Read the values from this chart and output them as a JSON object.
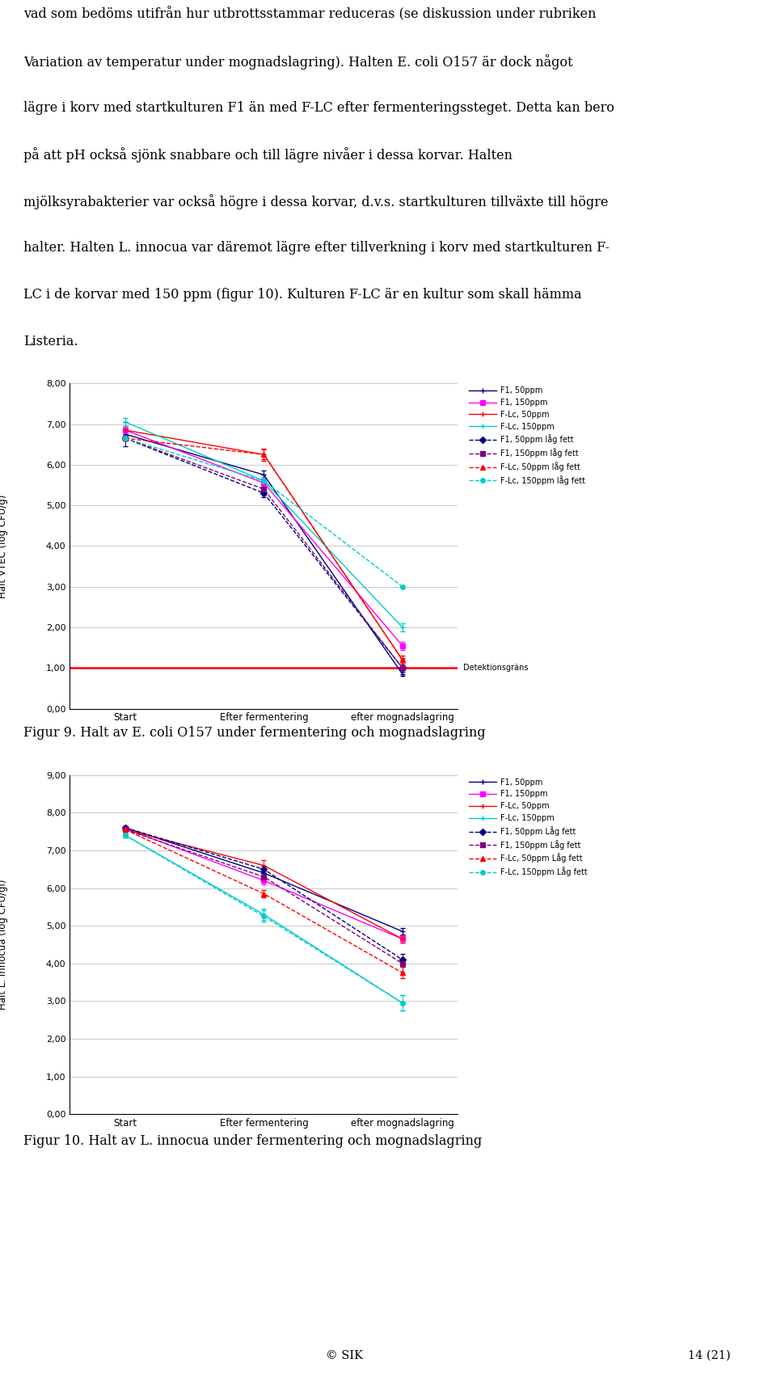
{
  "text_content": {
    "lines": [
      "vad som bedöms utifrån hur utbrottsstammar reduceras (se diskussion under rubriken",
      "Variation av temperatur under mognadslagring). Halten E. coli O157 är dock något",
      "lägre i korv med startkulturen F1 än med F-LC efter fermenteringssteget. Detta kan bero",
      "på att pH också sjönk snabbare och till lägre nivåer i dessa korvar. Halten",
      "mjölksyrabakterier var också högre i dessa korvar, d.v.s. startkulturen tillväxte till högre",
      "halter. Halten L. innocua var däremot lägre efter tillverkning i korv med startkulturen F-",
      "LC i de korvar med 150 ppm (figur 10). Kulturen F-LC är en kultur som skall hämma",
      "Listeria."
    ],
    "fig9_caption": "Figur 9. Halt av E. coli O157 under fermentering och mognadslagring",
    "fig10_caption": "Figur 10. Halt av L. innocua under fermentering och mognadslagring",
    "fig9_ylabel": "Halt VTEC (log CFU/g)",
    "fig10_ylabel": "Halt L. innocua (log CFU/gl)",
    "xlabel_labels": [
      "Start",
      "Efter fermentering",
      "efter mognadslagring"
    ],
    "detection_label": "Detektionsgräns"
  },
  "fig9": {
    "ylim": [
      0.0,
      8.0
    ],
    "yticks": [
      0.0,
      1.0,
      2.0,
      3.0,
      4.0,
      5.0,
      6.0,
      7.0,
      8.0
    ],
    "ytick_labels": [
      "0,00",
      "1,00",
      "2,00",
      "3,00",
      "4,00",
      "5,00",
      "6,00",
      "7,00",
      "8,00"
    ],
    "detection_line": 1.0,
    "series": [
      {
        "label": "F1, 50ppm",
        "color": "#000080",
        "linestyle": "-",
        "marker": "+",
        "values": [
          6.75,
          5.75,
          0.85
        ],
        "yerr": [
          0.3,
          0.1,
          0.05
        ]
      },
      {
        "label": "F1, 150ppm",
        "color": "#FF00FF",
        "linestyle": "-",
        "marker": "s",
        "values": [
          6.85,
          5.55,
          1.55
        ],
        "yerr": [
          0.1,
          0.1,
          0.1
        ]
      },
      {
        "label": "F-Lc, 50ppm",
        "color": "#FF0000",
        "linestyle": "-",
        "marker": "+",
        "values": [
          6.85,
          6.25,
          1.2
        ],
        "yerr": [
          0.1,
          0.15,
          0.1
        ]
      },
      {
        "label": "F-Lc, 150ppm",
        "color": "#00CCCC",
        "linestyle": "-",
        "marker": "+",
        "values": [
          7.05,
          5.6,
          2.0
        ],
        "yerr": [
          0.1,
          0.15,
          0.1
        ]
      },
      {
        "label": "F1, 50ppm låg fett",
        "color": "#000080",
        "linestyle": "--",
        "marker": "D",
        "values": [
          6.65,
          5.3,
          1.0
        ],
        "yerr": [
          0.0,
          0.1,
          0.0
        ]
      },
      {
        "label": "F1, 150ppm låg fett",
        "color": "#800080",
        "linestyle": "--",
        "marker": "s",
        "values": [
          6.65,
          5.4,
          1.0
        ],
        "yerr": [
          0.0,
          0.1,
          0.0
        ]
      },
      {
        "label": "F-Lc, 50ppm låg fett",
        "color": "#FF0000",
        "linestyle": "--",
        "marker": "^",
        "values": [
          6.65,
          6.25,
          1.2
        ],
        "yerr": [
          0.0,
          0.12,
          0.05
        ]
      },
      {
        "label": "F-Lc, 150ppm låg fett",
        "color": "#00CCCC",
        "linestyle": "--",
        "marker": "o",
        "values": [
          6.65,
          5.6,
          3.0
        ],
        "yerr": [
          0.0,
          0.1,
          0.0
        ]
      }
    ]
  },
  "fig10": {
    "ylim": [
      0.0,
      9.0
    ],
    "yticks": [
      0.0,
      1.0,
      2.0,
      3.0,
      4.0,
      5.0,
      6.0,
      7.0,
      8.0,
      9.0
    ],
    "ytick_labels": [
      "0,00",
      "1,00",
      "2,00",
      "3,00",
      "4,00",
      "5,00",
      "6,00",
      "7,00",
      "8,00",
      "9,00"
    ],
    "series": [
      {
        "label": "F1, 50ppm",
        "color": "#000080",
        "linestyle": "-",
        "marker": "+",
        "values": [
          7.6,
          6.4,
          4.85
        ],
        "yerr": [
          0.05,
          0.05,
          0.08
        ]
      },
      {
        "label": "F1, 150ppm",
        "color": "#FF00FF",
        "linestyle": "-",
        "marker": "s",
        "values": [
          7.58,
          6.2,
          4.65
        ],
        "yerr": [
          0.05,
          0.1,
          0.1
        ]
      },
      {
        "label": "F-Lc, 50ppm",
        "color": "#FF0000",
        "linestyle": "-",
        "marker": "+",
        "values": [
          7.55,
          6.6,
          4.65
        ],
        "yerr": [
          0.05,
          0.15,
          0.1
        ]
      },
      {
        "label": "F-Lc, 150ppm",
        "color": "#00CCCC",
        "linestyle": "-",
        "marker": "+",
        "values": [
          7.4,
          5.3,
          2.95
        ],
        "yerr": [
          0.05,
          0.15,
          0.2
        ]
      },
      {
        "label": "F1, 50ppm Låg fett",
        "color": "#000080",
        "linestyle": "--",
        "marker": "D",
        "values": [
          7.6,
          6.5,
          4.1
        ],
        "yerr": [
          0.05,
          0.1,
          0.15
        ]
      },
      {
        "label": "F1, 150ppm Låg fett",
        "color": "#800080",
        "linestyle": "--",
        "marker": "s",
        "values": [
          7.55,
          6.3,
          4.0
        ],
        "yerr": [
          0.05,
          0.1,
          0.1
        ]
      },
      {
        "label": "F-Lc, 50ppm Låg fett",
        "color": "#FF0000",
        "linestyle": "--",
        "marker": "^",
        "values": [
          7.55,
          5.85,
          3.75
        ],
        "yerr": [
          0.05,
          0.1,
          0.15
        ]
      },
      {
        "label": "F-Lc, 150ppm Låg fett",
        "color": "#00CCCC",
        "linestyle": "--",
        "marker": "o",
        "values": [
          7.4,
          5.25,
          2.95
        ],
        "yerr": [
          0.05,
          0.15,
          0.2
        ]
      }
    ]
  }
}
